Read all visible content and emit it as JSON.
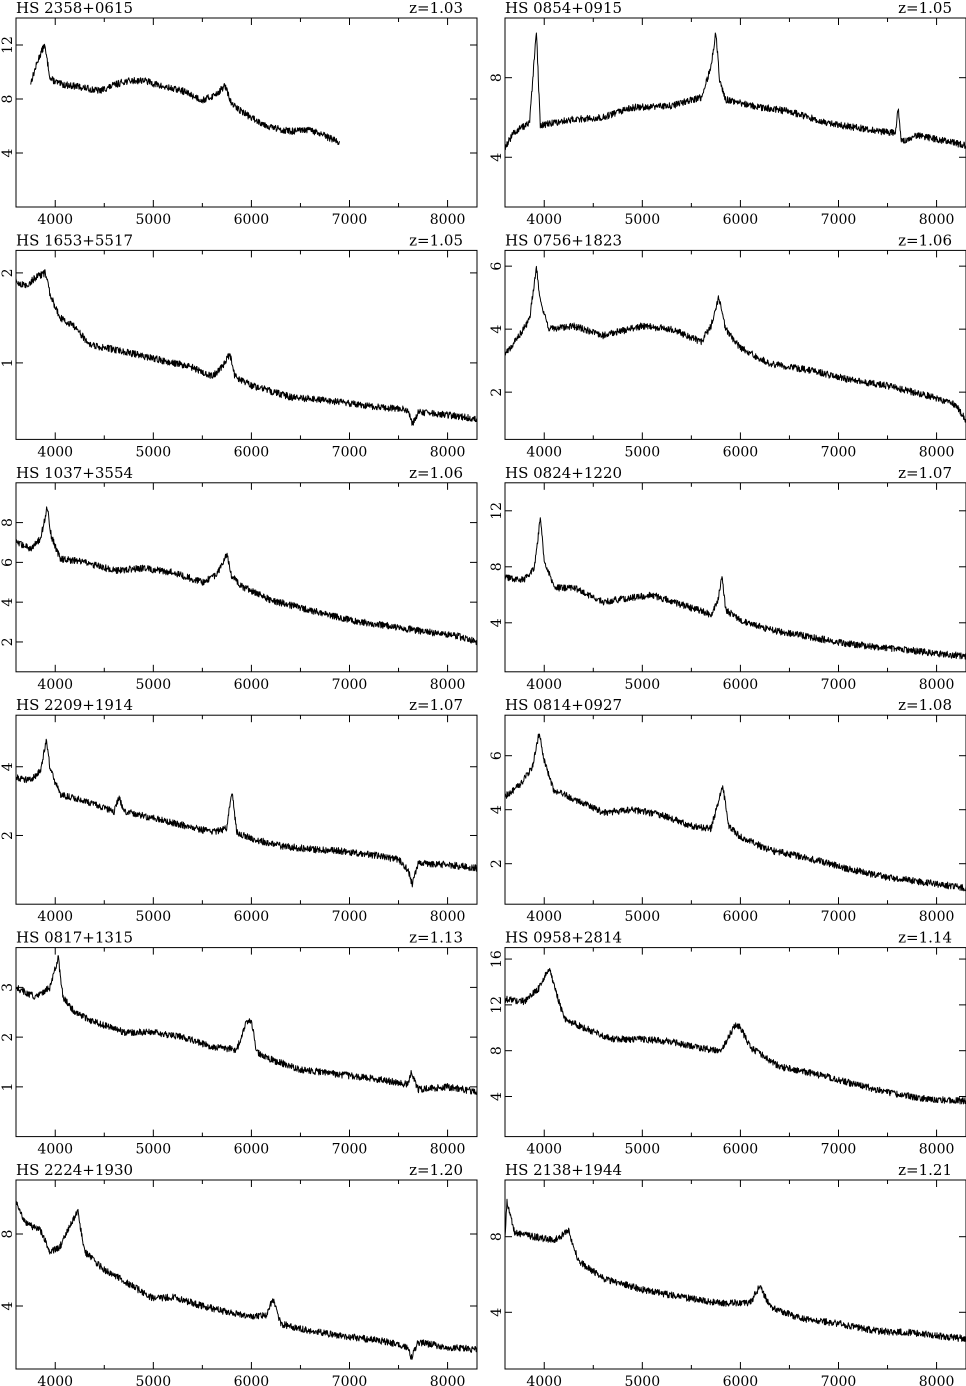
{
  "chart_data": [
    {
      "type": "line",
      "title": "HS 2358+0615",
      "redshift": "z=1.03",
      "xlim": [
        3600,
        8300
      ],
      "ylim": [
        0,
        14
      ],
      "xticks": [
        4000,
        5000,
        6000,
        7000,
        8000
      ],
      "yticks": [
        4,
        8,
        12
      ],
      "series": [
        {
          "x": [
            3750,
            3830,
            3890,
            3950,
            4050,
            4250,
            4450,
            4700,
            4900,
            5100,
            5300,
            5500,
            5600,
            5680,
            5730,
            5800,
            5860,
            6000,
            6200,
            6400,
            6600,
            6800,
            6900
          ],
          "values": [
            9.2,
            11.0,
            12.0,
            9.5,
            9.1,
            8.9,
            8.6,
            9.3,
            9.4,
            8.9,
            8.6,
            7.9,
            8.2,
            8.6,
            9.0,
            7.6,
            7.3,
            6.6,
            5.9,
            5.6,
            5.7,
            5.1,
            4.8
          ]
        }
      ]
    },
    {
      "type": "line",
      "title": "HS 0854+0915",
      "redshift": "z=1.05",
      "xlim": [
        3600,
        8300
      ],
      "ylim": [
        1.5,
        11
      ],
      "xticks": [
        4000,
        5000,
        6000,
        7000,
        8000
      ],
      "yticks": [
        4,
        8
      ],
      "series": [
        {
          "x": [
            3600,
            3700,
            3850,
            3920,
            3960,
            4050,
            4300,
            4600,
            4900,
            5300,
            5600,
            5700,
            5750,
            5790,
            5850,
            6100,
            6500,
            6900,
            7300,
            7580,
            7610,
            7640,
            7800,
            8100,
            8300
          ],
          "values": [
            4.5,
            5.3,
            5.7,
            10.3,
            5.6,
            5.7,
            5.9,
            6.0,
            6.5,
            6.6,
            7.0,
            8.5,
            10.3,
            7.8,
            6.9,
            6.6,
            6.3,
            5.7,
            5.4,
            5.2,
            6.5,
            4.8,
            5.1,
            4.8,
            4.6
          ]
        }
      ]
    },
    {
      "type": "line",
      "title": "HS 1653+5517",
      "redshift": "z=1.05",
      "xlim": [
        3600,
        8300
      ],
      "ylim": [
        0.15,
        2.25
      ],
      "xticks": [
        4000,
        5000,
        6000,
        7000,
        8000
      ],
      "yticks": [
        1,
        2
      ],
      "series": [
        {
          "x": [
            3600,
            3700,
            3800,
            3900,
            3950,
            4050,
            4200,
            4350,
            4600,
            4800,
            5000,
            5200,
            5400,
            5600,
            5700,
            5780,
            5830,
            6000,
            6400,
            6800,
            7200,
            7600,
            7640,
            7700,
            8000,
            8300
          ],
          "values": [
            1.9,
            1.85,
            1.95,
            2.0,
            1.75,
            1.5,
            1.4,
            1.2,
            1.15,
            1.1,
            1.05,
            1.0,
            0.95,
            0.85,
            0.95,
            1.1,
            0.85,
            0.75,
            0.62,
            0.58,
            0.52,
            0.48,
            0.32,
            0.45,
            0.42,
            0.38
          ]
        }
      ]
    },
    {
      "type": "line",
      "title": "HS 0756+1823",
      "redshift": "z=1.06",
      "xlim": [
        3600,
        8300
      ],
      "ylim": [
        0.5,
        6.5
      ],
      "xticks": [
        4000,
        5000,
        6000,
        7000,
        8000
      ],
      "yticks": [
        2,
        4,
        6
      ],
      "series": [
        {
          "x": [
            3600,
            3700,
            3850,
            3920,
            3960,
            4050,
            4300,
            4600,
            5000,
            5300,
            5600,
            5700,
            5780,
            5850,
            6000,
            6300,
            6700,
            7100,
            7500,
            7900,
            8200,
            8300
          ],
          "values": [
            3.2,
            3.6,
            4.3,
            6.0,
            4.9,
            4.0,
            4.1,
            3.8,
            4.1,
            4.0,
            3.6,
            4.1,
            5.0,
            4.0,
            3.4,
            2.9,
            2.7,
            2.4,
            2.2,
            1.9,
            1.6,
            1.1
          ]
        }
      ]
    },
    {
      "type": "line",
      "title": "HS 1037+3554",
      "redshift": "z=1.06",
      "xlim": [
        3600,
        8300
      ],
      "ylim": [
        0.5,
        10
      ],
      "xticks": [
        4000,
        5000,
        6000,
        7000,
        8000
      ],
      "yticks": [
        2,
        4,
        6,
        8
      ],
      "series": [
        {
          "x": [
            3600,
            3750,
            3850,
            3920,
            3960,
            4050,
            4300,
            4600,
            4900,
            5200,
            5500,
            5650,
            5750,
            5800,
            5900,
            6200,
            6600,
            7000,
            7400,
            7800,
            8100,
            8300
          ],
          "values": [
            7.0,
            6.7,
            7.2,
            8.8,
            7.3,
            6.2,
            6.0,
            5.6,
            5.7,
            5.5,
            5.0,
            5.4,
            6.4,
            5.3,
            4.8,
            4.1,
            3.6,
            3.1,
            2.8,
            2.5,
            2.3,
            2.0
          ]
        }
      ]
    },
    {
      "type": "line",
      "title": "HS 0824+1220",
      "redshift": "z=1.07",
      "xlim": [
        3600,
        8300
      ],
      "ylim": [
        0.5,
        14
      ],
      "xticks": [
        4000,
        5000,
        6000,
        7000,
        8000
      ],
      "yticks": [
        4,
        8,
        12
      ],
      "series": [
        {
          "x": [
            3600,
            3800,
            3900,
            3960,
            4000,
            4100,
            4300,
            4600,
            4900,
            5100,
            5400,
            5700,
            5770,
            5810,
            5850,
            6000,
            6300,
            6700,
            7100,
            7500,
            7900,
            8300
          ],
          "values": [
            7.2,
            7.1,
            8.0,
            11.5,
            8.5,
            6.5,
            6.5,
            5.5,
            5.8,
            6.0,
            5.3,
            4.6,
            5.5,
            7.4,
            4.9,
            4.2,
            3.5,
            3.0,
            2.5,
            2.2,
            1.9,
            1.6
          ]
        }
      ]
    },
    {
      "type": "line",
      "title": "HS 2209+1914",
      "redshift": "z=1.07",
      "xlim": [
        3600,
        8300
      ],
      "ylim": [
        0,
        5.5
      ],
      "xticks": [
        4000,
        5000,
        6000,
        7000,
        8000
      ],
      "yticks": [
        2,
        4
      ],
      "series": [
        {
          "x": [
            3600,
            3750,
            3850,
            3910,
            3950,
            4050,
            4300,
            4600,
            4650,
            4700,
            5000,
            5300,
            5600,
            5750,
            5800,
            5850,
            6000,
            6300,
            6600,
            6900,
            7200,
            7500,
            7600,
            7640,
            7700,
            8000,
            8300
          ],
          "values": [
            3.7,
            3.6,
            3.9,
            4.8,
            3.9,
            3.2,
            3.0,
            2.7,
            3.1,
            2.7,
            2.5,
            2.3,
            2.1,
            2.2,
            3.3,
            2.1,
            1.9,
            1.7,
            1.6,
            1.55,
            1.45,
            1.3,
            1.0,
            0.55,
            1.2,
            1.15,
            1.05
          ]
        }
      ]
    },
    {
      "type": "line",
      "title": "HS 0814+0927",
      "redshift": "z=1.08",
      "xlim": [
        3600,
        8300
      ],
      "ylim": [
        0.5,
        7.5
      ],
      "xticks": [
        4000,
        5000,
        6000,
        7000,
        8000
      ],
      "yticks": [
        2,
        4,
        6
      ],
      "series": [
        {
          "x": [
            3600,
            3750,
            3880,
            3950,
            4000,
            4100,
            4300,
            4600,
            4900,
            5200,
            5500,
            5700,
            5820,
            5880,
            6000,
            6300,
            6700,
            7100,
            7500,
            7900,
            8300
          ],
          "values": [
            4.5,
            4.9,
            5.6,
            6.9,
            5.8,
            4.7,
            4.4,
            3.9,
            4.0,
            3.8,
            3.4,
            3.3,
            4.9,
            3.4,
            3.0,
            2.5,
            2.2,
            1.8,
            1.5,
            1.3,
            1.1
          ]
        }
      ]
    },
    {
      "type": "line",
      "title": "HS 0817+1315",
      "redshift": "z=1.13",
      "xlim": [
        3600,
        8300
      ],
      "ylim": [
        0,
        3.8
      ],
      "xticks": [
        4000,
        5000,
        6000,
        7000,
        8000
      ],
      "yticks": [
        1,
        2,
        3
      ],
      "series": [
        {
          "x": [
            3600,
            3800,
            3950,
            4030,
            4080,
            4200,
            4400,
            4700,
            5000,
            5300,
            5600,
            5850,
            5950,
            6000,
            6050,
            6200,
            6500,
            6900,
            7300,
            7600,
            7630,
            7700,
            8000,
            8300
          ],
          "values": [
            3.0,
            2.8,
            3.0,
            3.6,
            2.8,
            2.5,
            2.3,
            2.1,
            2.1,
            2.0,
            1.8,
            1.75,
            2.3,
            2.35,
            1.7,
            1.55,
            1.35,
            1.25,
            1.15,
            1.05,
            1.3,
            0.95,
            1.0,
            0.9
          ]
        }
      ]
    },
    {
      "type": "line",
      "title": "HS 0958+2814",
      "redshift": "z=1.14",
      "xlim": [
        3600,
        8300
      ],
      "ylim": [
        0.5,
        17
      ],
      "xticks": [
        4000,
        5000,
        6000,
        7000,
        8000
      ],
      "yticks": [
        4,
        8,
        12,
        16
      ],
      "series": [
        {
          "x": [
            3600,
            3800,
            3950,
            4050,
            4100,
            4200,
            4400,
            4700,
            5000,
            5300,
            5600,
            5800,
            5950,
            6000,
            6100,
            6400,
            6800,
            7200,
            7600,
            7900,
            8300
          ],
          "values": [
            12.5,
            12.3,
            13.5,
            15.2,
            13.8,
            10.8,
            10.0,
            9.0,
            9.0,
            8.8,
            8.2,
            8.0,
            10.3,
            10.0,
            8.3,
            6.6,
            5.9,
            5.0,
            4.2,
            3.8,
            3.6
          ]
        }
      ]
    },
    {
      "type": "line",
      "title": "HS 2224+1930",
      "redshift": "z=1.20",
      "xlim": [
        3600,
        8300
      ],
      "ylim": [
        0.5,
        11
      ],
      "xticks": [
        4000,
        5000,
        6000,
        7000,
        8000
      ],
      "yticks": [
        4,
        8
      ],
      "series": [
        {
          "x": [
            3600,
            3700,
            3850,
            3950,
            4050,
            4150,
            4230,
            4300,
            4500,
            4700,
            5000,
            5200,
            5500,
            5800,
            6000,
            6150,
            6220,
            6300,
            6600,
            7000,
            7400,
            7600,
            7630,
            7700,
            8000,
            8300
          ],
          "values": [
            9.8,
            8.6,
            8.2,
            7.0,
            7.3,
            8.5,
            9.3,
            7.0,
            6.0,
            5.4,
            4.4,
            4.5,
            4.0,
            3.6,
            3.4,
            3.5,
            4.4,
            3.0,
            2.6,
            2.3,
            2.0,
            1.7,
            1.1,
            2.0,
            1.7,
            1.6
          ]
        }
      ]
    },
    {
      "type": "line",
      "title": "HS 2138+1944",
      "redshift": "z=1.21",
      "xlim": [
        3600,
        8300
      ],
      "ylim": [
        1,
        11
      ],
      "xticks": [
        4000,
        5000,
        6000,
        7000,
        8000
      ],
      "yticks": [
        4,
        8
      ],
      "series": [
        {
          "x": [
            3600,
            3620,
            3700,
            3900,
            4100,
            4250,
            4350,
            4600,
            5000,
            5400,
            5800,
            6100,
            6200,
            6300,
            6600,
            7000,
            7400,
            7800,
            8100,
            8300
          ],
          "values": [
            8.0,
            9.8,
            8.2,
            8.0,
            7.8,
            8.3,
            6.7,
            5.8,
            5.2,
            4.8,
            4.5,
            4.5,
            5.4,
            4.3,
            3.7,
            3.4,
            3.0,
            2.9,
            2.7,
            2.6
          ]
        }
      ]
    }
  ]
}
